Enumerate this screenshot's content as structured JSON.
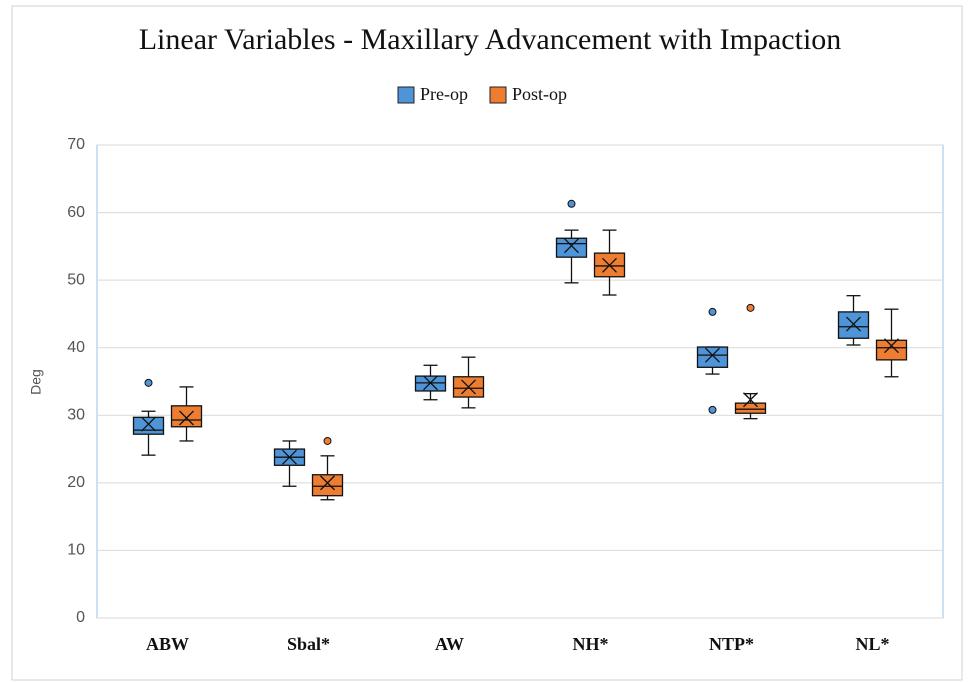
{
  "chart_data": {
    "type": "box",
    "title": "Linear Variables - Maxillary Advancement with Impaction",
    "y_label": "Deg",
    "categories": [
      "ABW",
      "Sbal*",
      "AW",
      "NH*",
      "NTP*",
      "NL*"
    ],
    "ylim": [
      0,
      70
    ],
    "yticks": [
      0,
      10,
      20,
      30,
      40,
      50,
      60,
      70
    ],
    "grid": true,
    "legend": "top",
    "series": [
      {
        "name": "Pre-op",
        "color": "#4e94d6",
        "values": [
          {
            "min": 24.1,
            "q1": 27.2,
            "median": 27.8,
            "q3": 29.7,
            "max": 30.6,
            "mean": 28.7,
            "outliers": [
              34.8
            ]
          },
          {
            "min": 19.5,
            "q1": 22.6,
            "median": 23.8,
            "q3": 25.0,
            "max": 26.2,
            "mean": 23.8,
            "outliers": []
          },
          {
            "min": 32.3,
            "q1": 33.6,
            "median": 34.8,
            "q3": 35.8,
            "max": 37.4,
            "mean": 34.8,
            "outliers": []
          },
          {
            "min": 49.6,
            "q1": 53.4,
            "median": 55.4,
            "q3": 56.2,
            "max": 57.4,
            "mean": 55.1,
            "outliers": [
              61.3
            ]
          },
          {
            "min": 36.1,
            "q1": 37.1,
            "median": 38.9,
            "q3": 40.1,
            "max": 40.1,
            "mean": 38.9,
            "outliers": [
              45.3,
              30.8
            ]
          },
          {
            "min": 40.4,
            "q1": 41.4,
            "median": 43.1,
            "q3": 45.3,
            "max": 47.7,
            "mean": 43.5,
            "outliers": []
          }
        ]
      },
      {
        "name": "Post-op",
        "color": "#ed7d31",
        "values": [
          {
            "min": 26.2,
            "q1": 28.3,
            "median": 29.3,
            "q3": 31.4,
            "max": 34.2,
            "mean": 29.6,
            "outliers": []
          },
          {
            "min": 17.5,
            "q1": 18.1,
            "median": 19.5,
            "q3": 21.2,
            "max": 24.0,
            "mean": 20.0,
            "outliers": [
              26.2
            ]
          },
          {
            "min": 31.1,
            "q1": 32.7,
            "median": 34.0,
            "q3": 35.7,
            "max": 38.6,
            "mean": 34.2,
            "outliers": []
          },
          {
            "min": 47.8,
            "q1": 50.5,
            "median": 52.1,
            "q3": 54.0,
            "max": 57.4,
            "mean": 52.2,
            "outliers": []
          },
          {
            "min": 29.5,
            "q1": 30.3,
            "median": 30.9,
            "q3": 31.8,
            "max": 33.2,
            "mean": 32.3,
            "outliers": [
              45.9
            ]
          },
          {
            "min": 35.7,
            "q1": 38.2,
            "median": 40.0,
            "q3": 41.1,
            "max": 45.7,
            "mean": 40.3,
            "outliers": []
          }
        ]
      }
    ]
  }
}
